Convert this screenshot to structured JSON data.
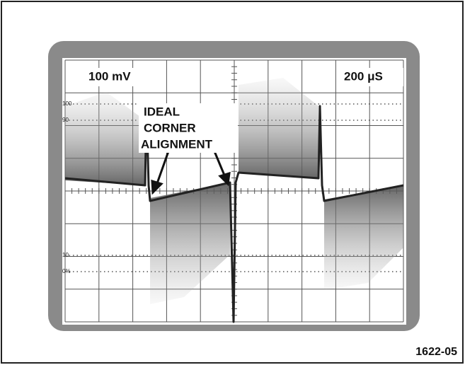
{
  "screen": {
    "volts_per_div": "100 mV",
    "time_per_div": "200 μS"
  },
  "graticule_labels": [
    "100",
    "90",
    "10",
    "0%"
  ],
  "annotation": {
    "lines": [
      "IDEAL",
      "CORNER",
      "ALIGNMENT"
    ]
  },
  "figure_id": "1622-05"
}
